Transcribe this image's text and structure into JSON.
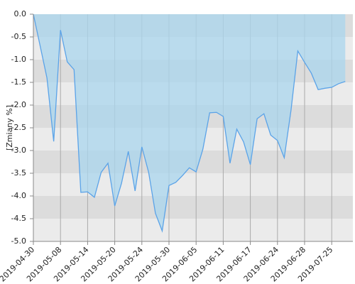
{
  "chart_data": {
    "type": "area",
    "ylabel": "[Zmiany %]",
    "categories": [
      "2019-04-30",
      null,
      null,
      null,
      "2019-05-08",
      null,
      null,
      null,
      "2019-05-14",
      null,
      null,
      null,
      "2019-05-20",
      null,
      null,
      null,
      "2019-05-24",
      null,
      null,
      null,
      "2019-05-30",
      null,
      null,
      null,
      "2019-06-05",
      null,
      null,
      null,
      "2019-06-11",
      null,
      null,
      null,
      "2019-06-17",
      null,
      null,
      null,
      "2019-06-24",
      null,
      null,
      null,
      "2019-06-28",
      null,
      null,
      null,
      "2019-07-25",
      null,
      null
    ],
    "values": [
      0,
      -0.7,
      -1.4,
      -2.8,
      -0.35,
      -1.05,
      -1.22,
      -3.92,
      -3.91,
      -4.03,
      -3.48,
      -3.28,
      -4.22,
      -3.72,
      -3.02,
      -3.89,
      -2.92,
      -3.48,
      -4.38,
      -4.77,
      -3.77,
      -3.7,
      -3.55,
      -3.38,
      -3.47,
      -2.97,
      -2.17,
      -2.16,
      -2.25,
      -3.28,
      -2.53,
      -2.81,
      -3.31,
      -2.3,
      -2.19,
      -2.66,
      -2.78,
      -3.16,
      -2.11,
      -0.81,
      -1.06,
      -1.3,
      -1.66,
      -1.63,
      -1.61,
      -1.53,
      -1.48
    ],
    "color": "#5ba3e8",
    "fill": "#a9d6ee",
    "ylim": [
      -5,
      0
    ],
    "yticks": [
      {
        "value": 0,
        "label": "0.0"
      },
      -0.5,
      {
        "value": -1,
        "label": "-1.0"
      },
      -1.5,
      {
        "value": -2,
        "label": "-2.0"
      },
      -2.5,
      {
        "value": -3,
        "label": "-3.0"
      },
      -3.5,
      {
        "value": -4,
        "label": "-4.0"
      },
      -4.5,
      {
        "value": -5,
        "label": "-5.0"
      }
    ],
    "grid": true
  }
}
